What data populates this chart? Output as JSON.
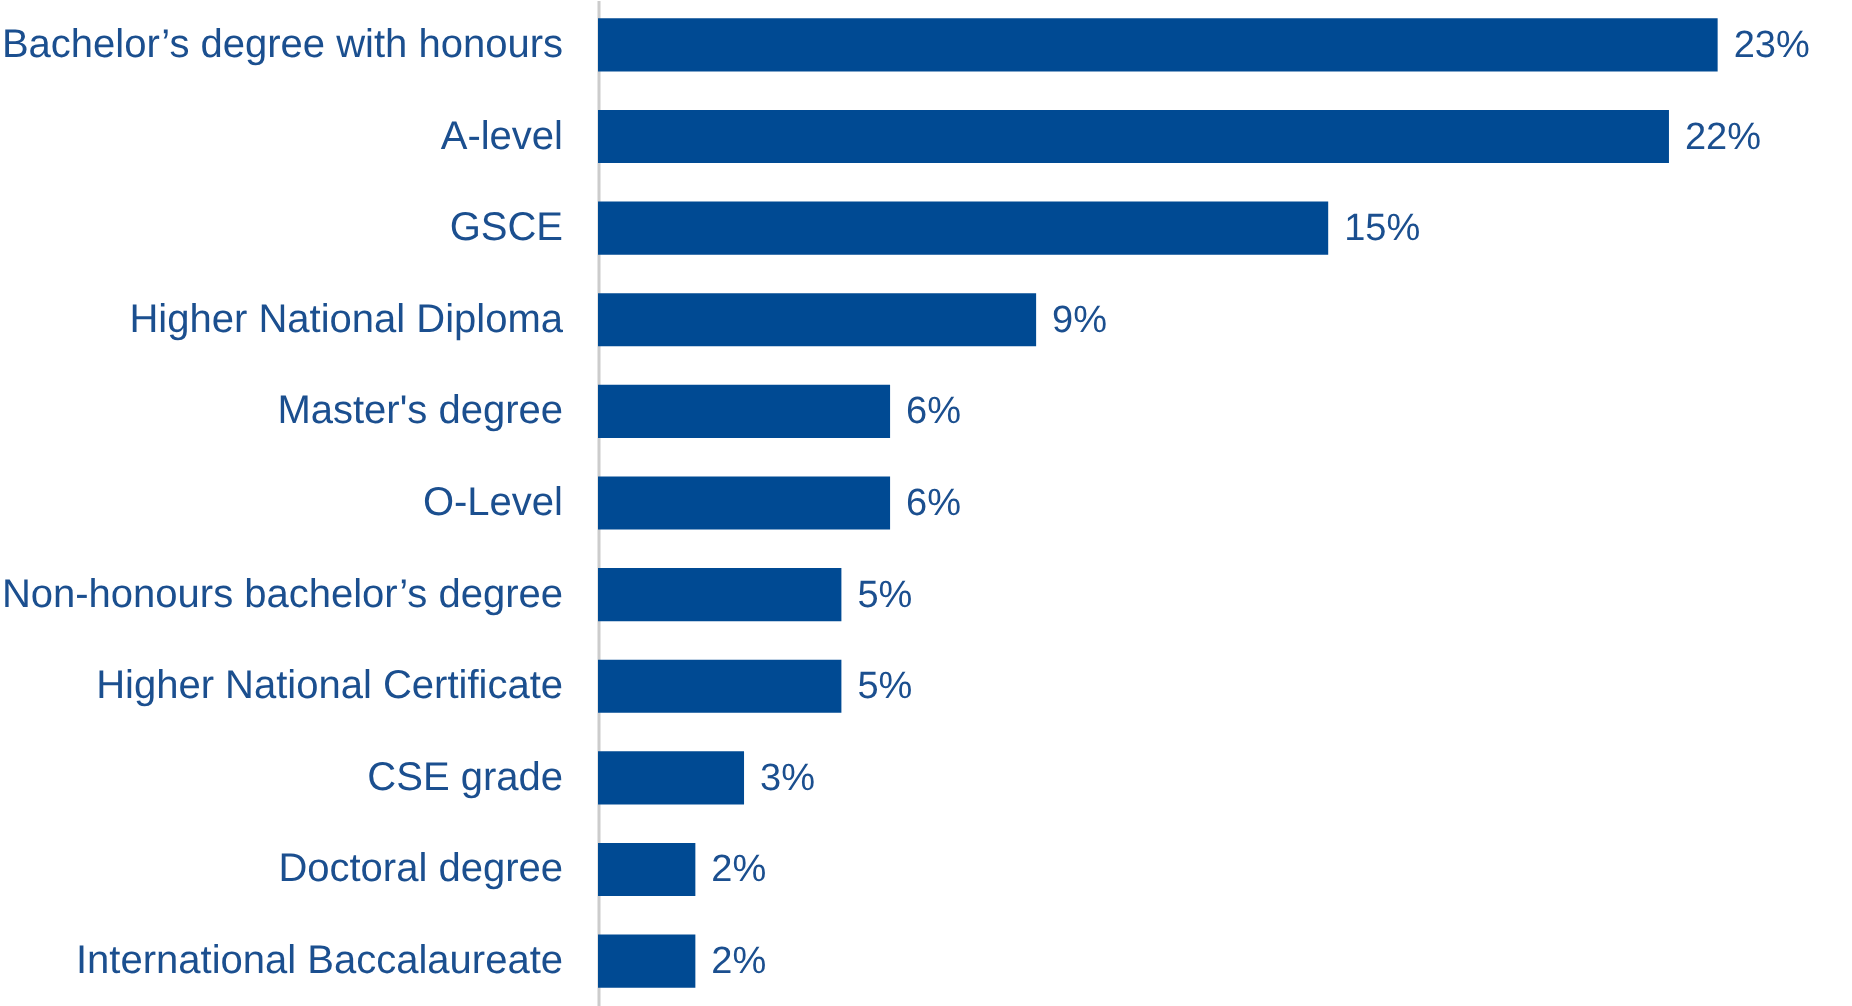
{
  "chart_data": {
    "type": "bar",
    "orientation": "horizontal",
    "categories": [
      "Bachelor’s degree with honours",
      "A-level",
      "GSCE",
      "Higher National Diploma",
      "Master's degree",
      "O-Level",
      "Non-honours bachelor’s degree",
      "Higher National Certificate",
      "CSE grade",
      "Doctoral degree",
      "International Baccalaureate"
    ],
    "values": [
      23,
      22,
      15,
      9,
      6,
      6,
      5,
      5,
      3,
      2,
      2
    ],
    "value_labels": [
      "23%",
      "22%",
      "15%",
      "9%",
      "6%",
      "6%",
      "5%",
      "5%",
      "3%",
      "2%",
      "2%"
    ],
    "color": "#004a93"
  }
}
